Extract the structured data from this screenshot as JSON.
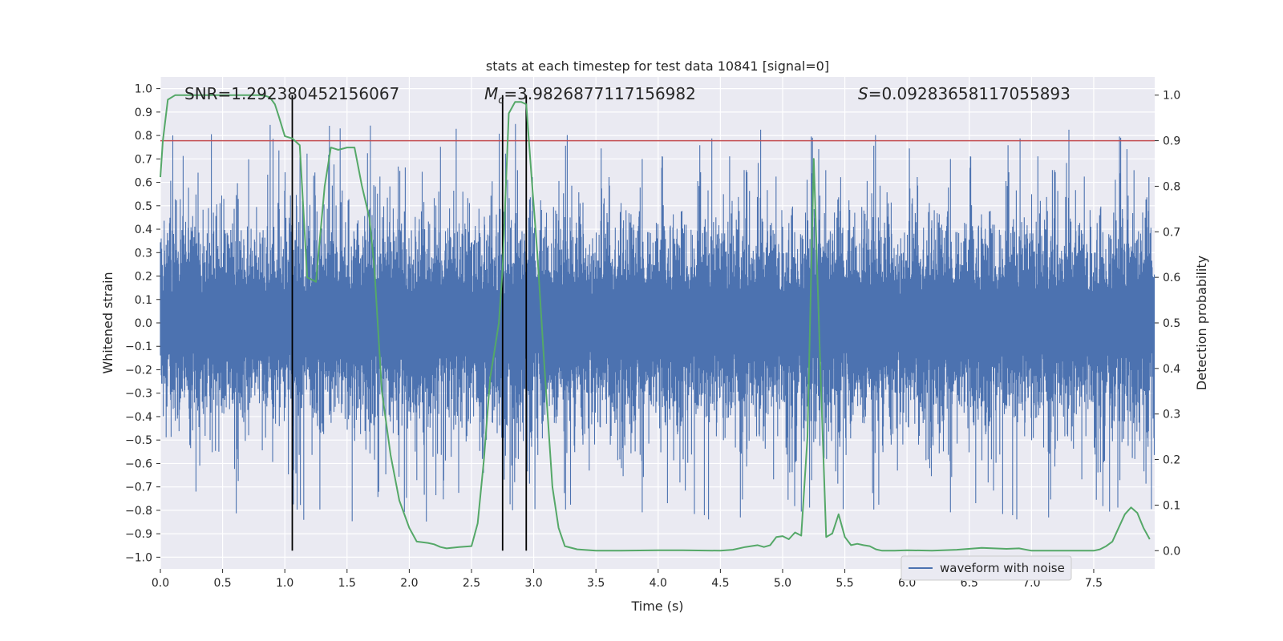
{
  "chart_data": {
    "type": "line",
    "title": "stats at each timestep for test data 10841 [signal=0]",
    "xlabel": "Time (s)",
    "ylabel_left": "Whitened strain",
    "ylabel_right": "Detection probability",
    "xlim": [
      0.0,
      7.99
    ],
    "ylim_left": [
      -1.05,
      1.05
    ],
    "ylim_right": [
      -0.04,
      1.04
    ],
    "x_ticks": [
      "0.0",
      "0.5",
      "1.0",
      "1.5",
      "2.0",
      "2.5",
      "3.0",
      "3.5",
      "4.0",
      "4.5",
      "5.0",
      "5.5",
      "6.0",
      "6.5",
      "7.0",
      "7.5"
    ],
    "x_tick_values": [
      0.0,
      0.5,
      1.0,
      1.5,
      2.0,
      2.5,
      3.0,
      3.5,
      4.0,
      4.5,
      5.0,
      5.5,
      6.0,
      6.5,
      7.0,
      7.5
    ],
    "y_left_ticks": [
      "1.0",
      "0.9",
      "0.8",
      "0.7",
      "0.6",
      "0.5",
      "0.4",
      "0.3",
      "0.2",
      "0.1",
      "0.0",
      "−0.1",
      "−0.2",
      "−0.3",
      "−0.4",
      "−0.5",
      "−0.6",
      "−0.7",
      "−0.8",
      "−0.9",
      "−1.0"
    ],
    "y_left_tick_values": [
      1.0,
      0.9,
      0.8,
      0.7,
      0.6,
      0.5,
      0.4,
      0.3,
      0.2,
      0.1,
      0.0,
      -0.1,
      -0.2,
      -0.3,
      -0.4,
      -0.5,
      -0.6,
      -0.7,
      -0.8,
      -0.9,
      -1.0
    ],
    "y_right_ticks": [
      "1.0",
      "0.9",
      "0.8",
      "0.7",
      "0.6",
      "0.5",
      "0.4",
      "0.3",
      "0.2",
      "0.1",
      "0.0"
    ],
    "y_right_tick_values": [
      1.0,
      0.9,
      0.8,
      0.7,
      0.6,
      0.5,
      0.4,
      0.3,
      0.2,
      0.1,
      0.0
    ],
    "grid": true,
    "legend_placement": "lower-right",
    "annotations": {
      "snr_text": "SNR=1.292380452156067",
      "mc_prefix": "M",
      "mc_sub": "c",
      "mc_value": "=3.9826877117156982",
      "s_prefix": "S",
      "s_value": "=0.09283658117055893"
    },
    "threshold": {
      "axis": "right",
      "value": 0.9,
      "color": "#c44e52"
    },
    "vertical_markers": [
      1.06,
      2.75,
      2.94
    ],
    "vertical_marker_color": "#000000",
    "series": [
      {
        "name": "waveform with noise",
        "axis": "left",
        "color": "#4c72b0",
        "render": "noise-band",
        "typical_amplitude": 0.35,
        "max_value": 1.0,
        "min_value": -0.93
      },
      {
        "axis": "right",
        "color": "#55a868",
        "x": [
          0.0,
          0.02,
          0.06,
          0.12,
          0.2,
          0.3,
          0.4,
          0.5,
          0.6,
          0.7,
          0.75,
          0.8,
          0.85,
          0.88,
          0.92,
          0.95,
          1.0,
          1.06,
          1.12,
          1.18,
          1.25,
          1.32,
          1.37,
          1.43,
          1.5,
          1.56,
          1.62,
          1.68,
          1.72,
          1.78,
          1.85,
          1.92,
          2.0,
          2.06,
          2.15,
          2.2,
          2.25,
          2.3,
          2.4,
          2.5,
          2.55,
          2.6,
          2.65,
          2.68,
          2.72,
          2.75,
          2.8,
          2.85,
          2.9,
          2.94,
          2.98,
          3.03,
          3.08,
          3.15,
          3.2,
          3.25,
          3.35,
          3.5,
          3.7,
          4.0,
          4.2,
          4.5,
          4.6,
          4.7,
          4.8,
          4.85,
          4.9,
          4.95,
          5.0,
          5.05,
          5.1,
          5.15,
          5.2,
          5.25,
          5.3,
          5.35,
          5.4,
          5.45,
          5.5,
          5.55,
          5.6,
          5.65,
          5.7,
          5.75,
          5.8,
          5.9,
          6.0,
          6.2,
          6.4,
          6.6,
          6.8,
          6.9,
          7.0,
          7.2,
          7.4,
          7.5,
          7.55,
          7.6,
          7.65,
          7.7,
          7.75,
          7.8,
          7.85,
          7.9,
          7.95
        ],
        "y": [
          0.82,
          0.9,
          0.99,
          1.0,
          1.0,
          1.0,
          1.0,
          1.0,
          1.0,
          1.0,
          1.0,
          1.0,
          0.998,
          0.995,
          0.98,
          0.955,
          0.91,
          0.905,
          0.89,
          0.6,
          0.59,
          0.8,
          0.885,
          0.88,
          0.885,
          0.885,
          0.8,
          0.73,
          0.62,
          0.35,
          0.21,
          0.11,
          0.05,
          0.02,
          0.017,
          0.014,
          0.008,
          0.005,
          0.008,
          0.01,
          0.06,
          0.2,
          0.38,
          0.43,
          0.5,
          0.62,
          0.96,
          0.985,
          0.985,
          0.98,
          0.83,
          0.65,
          0.43,
          0.14,
          0.05,
          0.01,
          0.003,
          0.0,
          0.0,
          0.001,
          0.001,
          0.0,
          0.002,
          0.008,
          0.012,
          0.008,
          0.012,
          0.03,
          0.032,
          0.025,
          0.04,
          0.033,
          0.25,
          0.86,
          0.43,
          0.03,
          0.038,
          0.08,
          0.03,
          0.012,
          0.015,
          0.012,
          0.01,
          0.003,
          0.0,
          0.0,
          0.001,
          0.0,
          0.002,
          0.006,
          0.004,
          0.005,
          0.0,
          0.0,
          0.0,
          0.0,
          0.003,
          0.01,
          0.02,
          0.05,
          0.08,
          0.095,
          0.083,
          0.05,
          0.025
        ]
      }
    ]
  }
}
